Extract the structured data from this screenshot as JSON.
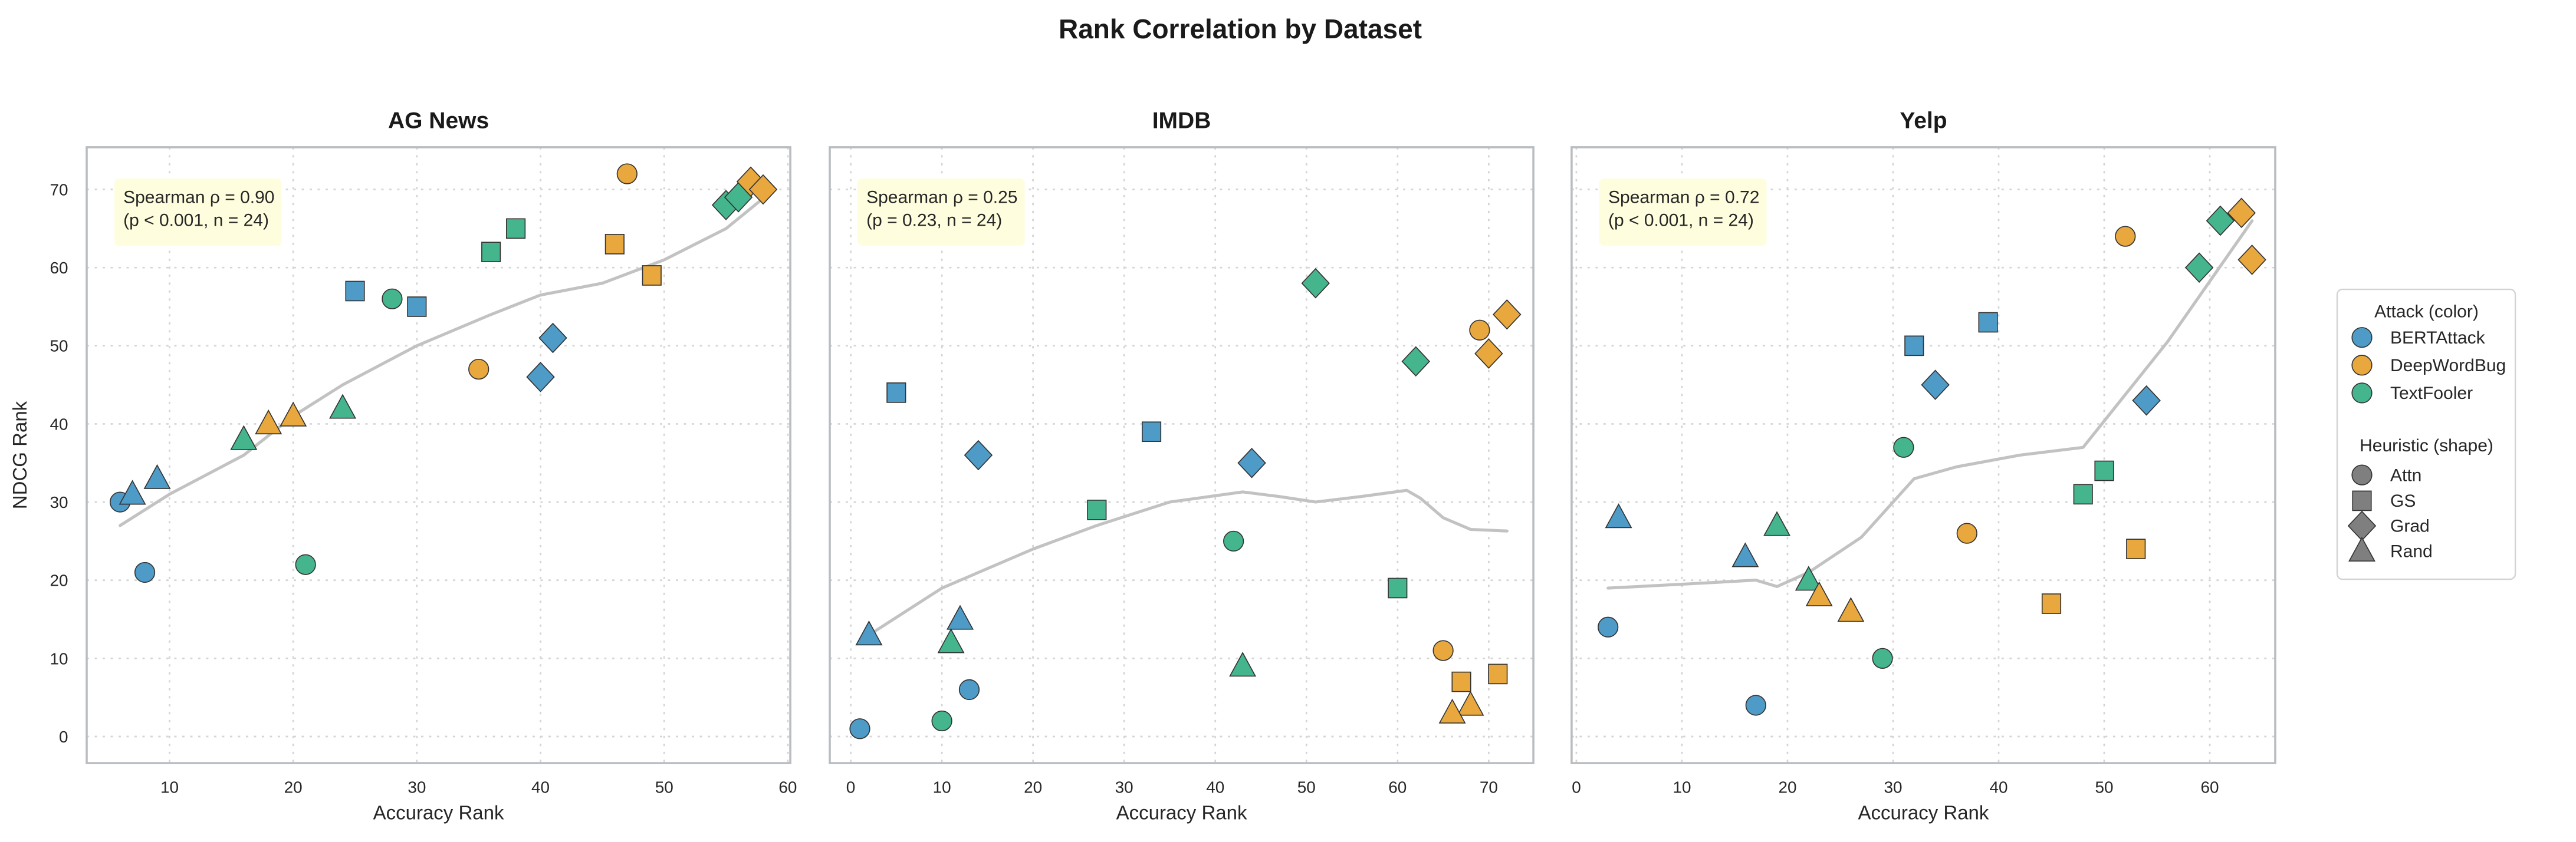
{
  "figure": {
    "title": "Rank Correlation by Dataset"
  },
  "palette": {
    "attack_colors": {
      "BERTAttack": "#4E9BC8",
      "DeepWordBug": "#E8A83E",
      "TextFooler": "#45B58E"
    },
    "marker_edge": "#333333",
    "trend": "#C2C2C2",
    "grid": "#D4D4D4",
    "spine": "#B9BDC1",
    "annotation_bg": "#FEFEDE",
    "legend_border": "#D3D3D3",
    "legend_shape_color": "#7F7F7F",
    "text": "#262626",
    "title_text": "#1a1a1a"
  },
  "axes": {
    "x_label": "Accuracy Rank",
    "y_label": "NDCG Rank"
  },
  "legend": {
    "attack_title": "Attack (color)",
    "attacks": [
      "BERTAttack",
      "DeepWordBug",
      "TextFooler"
    ],
    "heuristic_title": "Heuristic (shape)",
    "heuristics": [
      "Attn",
      "GS",
      "Grad",
      "Rand"
    ]
  },
  "chart_data": [
    {
      "type": "scatter",
      "title": "AG News",
      "annotation": [
        "Spearman ρ = 0.90",
        "(p < 0.001, n = 24)"
      ],
      "stats": {
        "spearman_rho": 0.9,
        "p_value": "< 0.001",
        "n": 24
      },
      "xlabel": "Accuracy Rank",
      "xlim": [
        3.3,
        60.2
      ],
      "ylim": [
        -3.4,
        75.4
      ],
      "xticks": [
        10,
        20,
        30,
        40,
        50,
        60
      ],
      "yticks": [
        0,
        10,
        20,
        30,
        40,
        50,
        60,
        70
      ],
      "show_ytick_labels": true,
      "points": {
        "BERTAttack": {
          "Attn": [
            [
              6,
              30
            ],
            [
              8,
              21
            ]
          ],
          "GS": [
            [
              25,
              57
            ],
            [
              30,
              55
            ]
          ],
          "Grad": [
            [
              41,
              51
            ],
            [
              40,
              46
            ]
          ],
          "Rand": [
            [
              9,
              33
            ],
            [
              7,
              31
            ]
          ]
        },
        "TextFooler": {
          "Attn": [
            [
              28,
              56
            ],
            [
              21,
              22
            ]
          ],
          "GS": [
            [
              38,
              65
            ],
            [
              36,
              62
            ]
          ],
          "Grad": [
            [
              55,
              68
            ],
            [
              56,
              69
            ]
          ],
          "Rand": [
            [
              24,
              42
            ],
            [
              16,
              38
            ]
          ]
        },
        "DeepWordBug": {
          "Attn": [
            [
              47,
              72
            ],
            [
              35,
              47
            ]
          ],
          "GS": [
            [
              46,
              63
            ],
            [
              49,
              59
            ]
          ],
          "Grad": [
            [
              57,
              71
            ],
            [
              58,
              70
            ]
          ],
          "Rand": [
            [
              18,
              40
            ],
            [
              20,
              41
            ]
          ]
        }
      },
      "trend": [
        [
          6,
          27
        ],
        [
          10,
          31
        ],
        [
          16,
          36
        ],
        [
          20,
          41
        ],
        [
          24,
          45
        ],
        [
          30,
          50
        ],
        [
          36,
          54
        ],
        [
          40,
          56.5
        ],
        [
          45,
          58
        ],
        [
          50,
          61
        ],
        [
          55,
          65
        ],
        [
          58.5,
          69.5
        ]
      ]
    },
    {
      "type": "scatter",
      "title": "IMDB",
      "annotation": [
        "Spearman ρ = 0.25",
        "(p = 0.23, n = 24)"
      ],
      "stats": {
        "spearman_rho": 0.25,
        "p_value": "= 0.23",
        "n": 24
      },
      "xlabel": "Accuracy Rank",
      "xlim": [
        -2.3,
        74.9
      ],
      "ylim": [
        -3.4,
        75.4
      ],
      "xticks": [
        0,
        10,
        20,
        30,
        40,
        50,
        60,
        70
      ],
      "yticks": [
        0,
        10,
        20,
        30,
        40,
        50,
        60,
        70
      ],
      "show_ytick_labels": false,
      "points": {
        "BERTAttack": {
          "Attn": [
            [
              1,
              1
            ],
            [
              13,
              6
            ]
          ],
          "GS": [
            [
              5,
              44
            ],
            [
              33,
              39
            ]
          ],
          "Grad": [
            [
              14,
              36
            ],
            [
              44,
              35
            ]
          ],
          "Rand": [
            [
              2,
              13
            ],
            [
              12,
              15
            ]
          ]
        },
        "TextFooler": {
          "Attn": [
            [
              42,
              25
            ],
            [
              10,
              2
            ]
          ],
          "GS": [
            [
              27,
              29
            ],
            [
              60,
              19
            ]
          ],
          "Grad": [
            [
              51,
              58
            ],
            [
              62,
              48
            ]
          ],
          "Rand": [
            [
              11,
              12
            ],
            [
              43,
              9
            ]
          ]
        },
        "DeepWordBug": {
          "Attn": [
            [
              69,
              52
            ],
            [
              65,
              11
            ]
          ],
          "GS": [
            [
              67,
              7
            ],
            [
              71,
              8
            ]
          ],
          "Grad": [
            [
              72,
              54
            ],
            [
              70,
              49
            ]
          ],
          "Rand": [
            [
              68,
              4
            ],
            [
              66,
              3
            ]
          ]
        }
      },
      "trend": [
        [
          2,
          13
        ],
        [
          10,
          19
        ],
        [
          20,
          24
        ],
        [
          27,
          27
        ],
        [
          35,
          30
        ],
        [
          43,
          31.3
        ],
        [
          47,
          30.7
        ],
        [
          51,
          30
        ],
        [
          56,
          30.7
        ],
        [
          61,
          31.5
        ],
        [
          62.5,
          30.5
        ],
        [
          65,
          28
        ],
        [
          68,
          26.5
        ],
        [
          72,
          26.3
        ]
      ]
    },
    {
      "type": "scatter",
      "title": "Yelp",
      "annotation": [
        "Spearman ρ = 0.72",
        "(p < 0.001, n = 24)"
      ],
      "stats": {
        "spearman_rho": 0.72,
        "p_value": "< 0.001",
        "n": 24
      },
      "xlabel": "Accuracy Rank",
      "xlim": [
        -0.45,
        66.2
      ],
      "ylim": [
        -3.4,
        75.4
      ],
      "xticks": [
        0,
        10,
        20,
        30,
        40,
        50,
        60
      ],
      "yticks": [
        0,
        10,
        20,
        30,
        40,
        50,
        60,
        70
      ],
      "show_ytick_labels": false,
      "points": {
        "BERTAttack": {
          "Attn": [
            [
              3,
              14
            ],
            [
              17,
              4
            ]
          ],
          "GS": [
            [
              32,
              50
            ],
            [
              39,
              53
            ]
          ],
          "Grad": [
            [
              34,
              45
            ],
            [
              54,
              43
            ]
          ],
          "Rand": [
            [
              4,
              28
            ],
            [
              16,
              23
            ]
          ]
        },
        "TextFooler": {
          "Attn": [
            [
              31,
              37
            ],
            [
              29,
              10
            ]
          ],
          "GS": [
            [
              50,
              34
            ],
            [
              48,
              31
            ]
          ],
          "Grad": [
            [
              61,
              66
            ],
            [
              59,
              60
            ]
          ],
          "Rand": [
            [
              19,
              27
            ],
            [
              22,
              20
            ]
          ]
        },
        "DeepWordBug": {
          "Attn": [
            [
              52,
              64
            ],
            [
              37,
              26
            ]
          ],
          "GS": [
            [
              53,
              24
            ],
            [
              45,
              17
            ]
          ],
          "Grad": [
            [
              63,
              67
            ],
            [
              64,
              61
            ]
          ],
          "Rand": [
            [
              23,
              18
            ],
            [
              26,
              16
            ]
          ]
        }
      },
      "trend": [
        [
          3,
          19
        ],
        [
          10,
          19.5
        ],
        [
          17,
          20
        ],
        [
          19,
          19.2
        ],
        [
          22,
          21
        ],
        [
          27,
          25.5
        ],
        [
          32,
          33
        ],
        [
          36,
          34.5
        ],
        [
          42,
          36
        ],
        [
          48,
          37
        ],
        [
          56,
          50.5
        ],
        [
          64,
          66
        ]
      ]
    }
  ]
}
